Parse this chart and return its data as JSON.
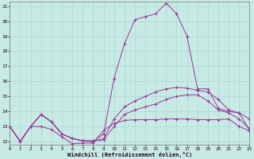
{
  "xlabel": "Windchill (Refroidissement éolien,°C)",
  "background_color": "#c8eae4",
  "grid_color": "#a8d8d0",
  "line_color": "#993399",
  "xlim": [
    0,
    23
  ],
  "ylim": [
    11.8,
    21.3
  ],
  "xticks": [
    0,
    1,
    2,
    3,
    4,
    5,
    6,
    7,
    8,
    9,
    10,
    11,
    12,
    13,
    14,
    15,
    16,
    17,
    18,
    19,
    20,
    21,
    22,
    23
  ],
  "yticks": [
    12,
    13,
    14,
    15,
    16,
    17,
    18,
    19,
    20,
    21
  ],
  "series": [
    [
      13.0,
      12.0,
      13.0,
      13.0,
      12.8,
      12.3,
      11.85,
      11.9,
      11.9,
      12.75,
      13.2,
      13.4,
      13.45,
      13.45,
      13.45,
      13.5,
      13.5,
      13.5,
      13.45,
      13.45,
      13.45,
      13.5,
      13.0,
      12.7
    ],
    [
      13.0,
      12.0,
      13.0,
      13.8,
      13.3,
      12.5,
      12.2,
      12.05,
      12.05,
      12.1,
      13.0,
      13.8,
      14.1,
      14.3,
      14.5,
      14.8,
      15.0,
      15.1,
      15.1,
      14.7,
      14.1,
      13.9,
      13.5,
      12.85
    ],
    [
      13.0,
      12.0,
      13.0,
      13.8,
      13.3,
      12.5,
      12.2,
      12.05,
      12.0,
      12.2,
      13.5,
      14.3,
      14.7,
      15.0,
      15.3,
      15.5,
      15.6,
      15.55,
      15.4,
      15.3,
      14.8,
      14.1,
      13.9,
      13.5
    ],
    [
      13.0,
      12.0,
      13.0,
      13.8,
      13.3,
      12.5,
      12.2,
      12.05,
      12.0,
      12.5,
      16.2,
      18.5,
      20.1,
      20.3,
      20.5,
      21.2,
      20.5,
      19.0,
      15.5,
      15.5,
      14.2,
      14.0,
      13.9,
      12.75
    ]
  ]
}
